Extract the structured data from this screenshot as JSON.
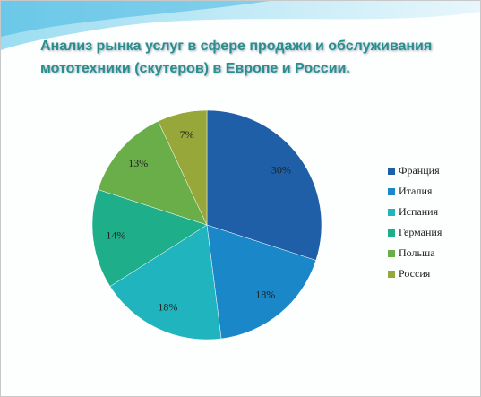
{
  "chart_data": {
    "type": "pie",
    "title": "Анализ рынка услуг в сфере  продажи и обслуживания мототехники (скутеров) в Европе и России.",
    "categories": [
      "Франция",
      "Италия",
      "Испания",
      "Германия",
      "Польша",
      "Россия"
    ],
    "values": [
      30,
      18,
      18,
      14,
      13,
      7
    ],
    "value_labels": [
      "30%",
      "18%",
      "18%",
      "14%",
      "13%",
      "7%"
    ],
    "colors": [
      "#1f5fa8",
      "#1a87c9",
      "#20b4bf",
      "#1fae8a",
      "#6aae4a",
      "#98a73a"
    ],
    "legend": "right"
  }
}
